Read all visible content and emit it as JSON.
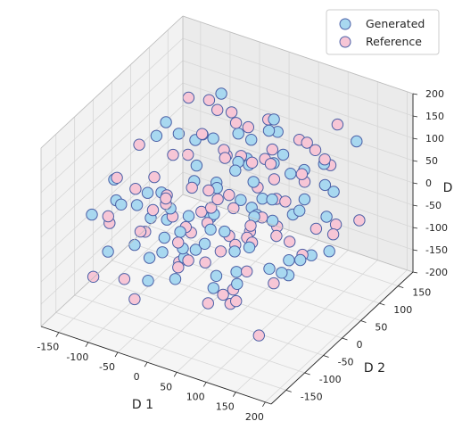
{
  "chart_data": {
    "type": "scatter",
    "projection": "3d",
    "title": "",
    "xlabel": "D 1",
    "ylabel": "D 2",
    "zlabel": "D",
    "xlim": [
      -180,
      210
    ],
    "ylim": [
      -190,
      190
    ],
    "zlim": [
      -200,
      200
    ],
    "x_ticks": [
      -150,
      -100,
      -50,
      0,
      50,
      100,
      150,
      200
    ],
    "y_ticks": [
      -150,
      -100,
      -50,
      0,
      50,
      100,
      150
    ],
    "z_ticks": [
      -200,
      -150,
      -100,
      -50,
      0,
      50,
      100,
      150,
      200
    ],
    "grid": true,
    "legend_position": "top-right",
    "colors": {
      "generated_fill": "#a8d8f0",
      "reference_fill": "#f7c6d6",
      "marker_edge": "#4a5fa6",
      "pane_left": "#f2f2f2",
      "pane_right": "#ebebeb",
      "pane_floor": "#f5f5f5",
      "grid": "#d6d6d6"
    },
    "series": [
      {
        "name": "Generated",
        "color": "#a8d8f0",
        "edgecolor": "#4a5fa6",
        "points": [
          [
            -143,
            -47,
            -12
          ],
          [
            -125,
            92,
            37
          ],
          [
            -112,
            -118,
            -58
          ],
          [
            -108,
            31,
            118
          ],
          [
            -97,
            -64,
            11
          ],
          [
            -92,
            141,
            -96
          ],
          [
            -88,
            -5,
            -104
          ],
          [
            -81,
            67,
            62
          ],
          [
            -74,
            -143,
            84
          ],
          [
            -69,
            -28,
            -37
          ],
          [
            -63,
            108,
            142
          ],
          [
            -58,
            -89,
            19
          ],
          [
            -52,
            22,
            -136
          ],
          [
            -47,
            163,
            3
          ],
          [
            -43,
            -121,
            107
          ],
          [
            -38,
            49,
            -71
          ],
          [
            -33,
            -12,
            53
          ],
          [
            -29,
            128,
            -18
          ],
          [
            -24,
            -77,
            -112
          ],
          [
            -19,
            84,
            91
          ],
          [
            -15,
            -164,
            -44
          ],
          [
            -11,
            14,
            27
          ],
          [
            -7,
            101,
            -83
          ],
          [
            -3,
            -53,
            133
          ],
          [
            2,
            156,
            48
          ],
          [
            6,
            -104,
            -9
          ],
          [
            10,
            38,
            76
          ],
          [
            14,
            -27,
            -127
          ],
          [
            19,
            119,
            14
          ],
          [
            23,
            -138,
            62
          ],
          [
            27,
            61,
            -53
          ],
          [
            31,
            -3,
            98
          ],
          [
            35,
            145,
            -114
          ],
          [
            39,
            -82,
            31
          ],
          [
            44,
            27,
            -23
          ],
          [
            48,
            -155,
            122
          ],
          [
            52,
            92,
            69
          ],
          [
            57,
            -41,
            -88
          ],
          [
            61,
            134,
            6
          ],
          [
            66,
            -117,
            -61
          ],
          [
            70,
            8,
            44
          ],
          [
            75,
            71,
            -141
          ],
          [
            80,
            -66,
            103
          ],
          [
            85,
            152,
            -31
          ],
          [
            90,
            -98,
            17
          ],
          [
            96,
            42,
            85
          ],
          [
            102,
            -24,
            -74
          ],
          [
            108,
            113,
            57
          ],
          [
            115,
            -131,
            -19
          ],
          [
            122,
            57,
            -98
          ],
          [
            129,
            -58,
            72
          ],
          [
            137,
            93,
            23
          ],
          [
            145,
            -9,
            -47
          ],
          [
            153,
            129,
            115
          ],
          [
            162,
            -86,
            -8
          ],
          [
            -136,
            63,
            -77
          ],
          [
            -118,
            -92,
            81
          ],
          [
            -101,
            118,
            26
          ],
          [
            -85,
            -31,
            146
          ],
          [
            -66,
            84,
            -118
          ],
          [
            -48,
            -148,
            9
          ],
          [
            -31,
            36,
            112
          ],
          [
            -14,
            -69,
            -66
          ],
          [
            4,
            143,
            87
          ],
          [
            21,
            -16,
            -33
          ],
          [
            38,
            76,
            129
          ],
          [
            55,
            -123,
            38
          ],
          [
            72,
            104,
            -57
          ],
          [
            89,
            -46,
            132
          ],
          [
            106,
            21,
            -122
          ],
          [
            123,
            -111,
            51
          ],
          [
            140,
            69,
            -13
          ],
          [
            -128,
            -136,
            32
          ],
          [
            -60,
            172,
            -52
          ],
          [
            -17,
            -101,
            68
          ],
          [
            47,
            157,
            -84
          ],
          [
            113,
            -34,
            94
          ],
          [
            158,
            48,
            -66
          ],
          [
            -99,
            7,
            -151
          ],
          [
            -5,
            -176,
            21
          ]
        ]
      },
      {
        "name": "Reference",
        "color": "#f7c6d6",
        "edgecolor": "#4a5fa6",
        "points": [
          [
            -147,
            21,
            58
          ],
          [
            -131,
            -84,
            -29
          ],
          [
            -121,
            112,
            104
          ],
          [
            -109,
            -23,
            -86
          ],
          [
            -98,
            74,
            16
          ],
          [
            -90,
            -129,
            126
          ],
          [
            -83,
            154,
            -41
          ],
          [
            -76,
            -51,
            73
          ],
          [
            -70,
            38,
            -118
          ],
          [
            -64,
            -107,
            0
          ],
          [
            -57,
            126,
            89
          ],
          [
            -51,
            -6,
            -63
          ],
          [
            -46,
            88,
            39
          ],
          [
            -41,
            -159,
            -101
          ],
          [
            -36,
            14,
            137
          ],
          [
            -31,
            -73,
            22
          ],
          [
            -26,
            147,
            -82
          ],
          [
            -21,
            -37,
            63
          ],
          [
            -17,
            56,
            -24
          ],
          [
            -12,
            -121,
            96
          ],
          [
            -8,
            98,
            -135
          ],
          [
            -3,
            -14,
            8
          ],
          [
            1,
            79,
            118
          ],
          [
            5,
            -88,
            -49
          ],
          [
            9,
            131,
            31
          ],
          [
            13,
            -46,
            79
          ],
          [
            17,
            19,
            -92
          ],
          [
            22,
            -142,
            41
          ],
          [
            26,
            109,
            -11
          ],
          [
            30,
            -29,
            146
          ],
          [
            34,
            64,
            -58
          ],
          [
            38,
            -167,
            12
          ],
          [
            43,
            23,
            101
          ],
          [
            47,
            -61,
            -128
          ],
          [
            51,
            137,
            67
          ],
          [
            56,
            -11,
            -35
          ],
          [
            60,
            -96,
            119
          ],
          [
            65,
            53,
            6
          ],
          [
            69,
            -136,
            -79
          ],
          [
            74,
            121,
            83
          ],
          [
            79,
            -34,
            -18
          ],
          [
            84,
            8,
            128
          ],
          [
            89,
            -108,
            -93
          ],
          [
            94,
            83,
            34
          ],
          [
            100,
            -71,
            58
          ],
          [
            106,
            148,
            -107
          ],
          [
            112,
            -19,
            21
          ],
          [
            119,
            36,
            99
          ],
          [
            126,
            -151,
            -37
          ],
          [
            133,
            98,
            -78
          ],
          [
            141,
            -43,
            109
          ],
          [
            149,
            27,
            -3
          ],
          [
            157,
            -92,
            77
          ],
          [
            166,
            116,
            -46
          ],
          [
            -142,
            -110,
            -134
          ],
          [
            -116,
            46,
            -61
          ],
          [
            -94,
            -146,
            51
          ],
          [
            -78,
            99,
            128
          ],
          [
            -61,
            -8,
            -144
          ],
          [
            -44,
            131,
            -7
          ],
          [
            -27,
            -132,
            84
          ],
          [
            -9,
            44,
            -103
          ],
          [
            8,
            -153,
            142
          ],
          [
            25,
            86,
            52
          ],
          [
            42,
            -26,
            -146
          ],
          [
            59,
            167,
            24
          ],
          [
            76,
            -79,
            93
          ],
          [
            93,
            2,
            -131
          ],
          [
            110,
            127,
            44
          ],
          [
            127,
            -124,
            9
          ],
          [
            144,
            58,
            126
          ],
          [
            -139,
            99,
            -22
          ],
          [
            -104,
            -57,
            39
          ],
          [
            -67,
            61,
            -88
          ],
          [
            -22,
            169,
            55
          ],
          [
            18,
            -57,
            17
          ],
          [
            63,
            92,
            -121
          ],
          [
            101,
            -153,
            65
          ],
          [
            134,
            14,
            -58
          ],
          [
            -88,
            137,
            72
          ],
          [
            -54,
            -166,
            -56
          ],
          [
            -2,
            51,
            148
          ],
          [
            49,
            -112,
            -15
          ],
          [
            96,
            168,
            97
          ],
          [
            152,
            -131,
            -118
          ]
        ]
      }
    ]
  }
}
